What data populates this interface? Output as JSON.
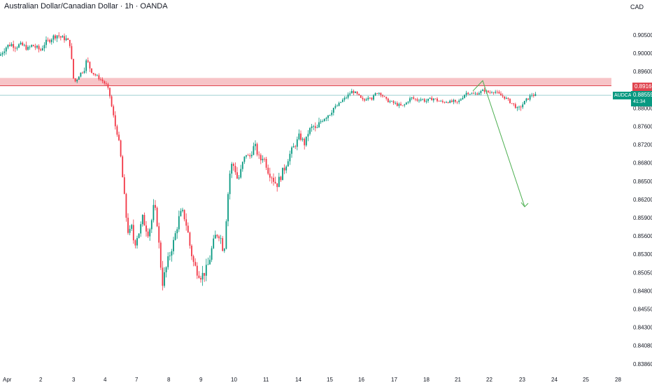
{
  "header": {
    "title": "Australian Dollar/Canadian Dollar · 1h · OANDA",
    "currency": "CAD"
  },
  "colors": {
    "up": "#089981",
    "down": "#f23645",
    "zone_fill": "#f7c4c7",
    "zone_line": "#e04650",
    "projection": "#4caf50",
    "last_price_line": "#9fcfd0",
    "last_price_bg": "#089981"
  },
  "labels": {
    "resistance": "0.89166",
    "symbol": "AUDCAD",
    "last_price": "0.88559",
    "countdown": "41:34"
  },
  "chart_data": {
    "type": "candlestick",
    "symbol": "AUDCAD",
    "timeframe": "1h",
    "source": "OANDA",
    "ylim": [
      0.8386,
      0.9074
    ],
    "y_ticks": [
      "0.90500",
      "0.90000",
      "0.89600",
      "0.88800",
      "0.88000",
      "0.87600",
      "0.87200",
      "0.86800",
      "0.86500",
      "0.86200",
      "0.85900",
      "0.85600",
      "0.85300",
      "0.85050",
      "0.84800",
      "0.84550",
      "0.84300",
      "0.84080",
      "0.83860"
    ],
    "x_ticks": [
      "Apr",
      "2",
      "3",
      "4",
      "7",
      "8",
      "9",
      "10",
      "11",
      "14",
      "15",
      "16",
      "17",
      "18",
      "21",
      "22",
      "23",
      "24",
      "25",
      "28"
    ],
    "resistance_zone": [
      0.8916,
      0.8932
    ],
    "resistance_level": 0.89166,
    "last_price": 0.88559,
    "price_path": [
      [
        0,
        0.8995
      ],
      [
        5,
        0.9008
      ],
      [
        10,
        0.902
      ],
      [
        16,
        0.9025
      ],
      [
        22,
        0.9018
      ],
      [
        28,
        0.9023
      ],
      [
        34,
        0.902
      ],
      [
        40,
        0.9012
      ],
      [
        46,
        0.9022
      ],
      [
        52,
        0.9015
      ],
      [
        58,
        0.9008
      ],
      [
        64,
        0.9028
      ],
      [
        70,
        0.9035
      ],
      [
        76,
        0.9045
      ],
      [
        82,
        0.905
      ],
      [
        88,
        0.9042
      ],
      [
        94,
        0.904
      ],
      [
        100,
        0.9025
      ],
      [
        102,
        0.8995
      ],
      [
        104,
        0.8935
      ],
      [
        108,
        0.8915
      ],
      [
        114,
        0.895
      ],
      [
        120,
        0.8965
      ],
      [
        124,
        0.8985
      ],
      [
        128,
        0.897
      ],
      [
        134,
        0.895
      ],
      [
        140,
        0.8935
      ],
      [
        146,
        0.892
      ],
      [
        152,
        0.89
      ],
      [
        156,
        0.887
      ],
      [
        160,
        0.88
      ],
      [
        164,
        0.8765
      ],
      [
        168,
        0.8745
      ],
      [
        172,
        0.87
      ],
      [
        176,
        0.8645
      ],
      [
        180,
        0.8595
      ],
      [
        184,
        0.856
      ],
      [
        188,
        0.8575
      ],
      [
        192,
        0.8545
      ],
      [
        196,
        0.856
      ],
      [
        200,
        0.857
      ],
      [
        204,
        0.859
      ],
      [
        208,
        0.8575
      ],
      [
        212,
        0.8565
      ],
      [
        216,
        0.858
      ],
      [
        220,
        0.861
      ],
      [
        224,
        0.859
      ],
      [
        228,
        0.8535
      ],
      [
        232,
        0.849
      ],
      [
        236,
        0.8505
      ],
      [
        240,
        0.852
      ],
      [
        244,
        0.8535
      ],
      [
        248,
        0.855
      ],
      [
        252,
        0.857
      ],
      [
        256,
        0.859
      ],
      [
        260,
        0.86
      ],
      [
        264,
        0.859
      ],
      [
        268,
        0.857
      ],
      [
        272,
        0.854
      ],
      [
        276,
        0.852
      ],
      [
        280,
        0.851
      ],
      [
        284,
        0.8505
      ],
      [
        288,
        0.85
      ],
      [
        292,
        0.8505
      ],
      [
        296,
        0.851
      ],
      [
        300,
        0.8525
      ],
      [
        304,
        0.8545
      ],
      [
        308,
        0.856
      ],
      [
        312,
        0.8565
      ],
      [
        316,
        0.8555
      ],
      [
        320,
        0.853
      ],
      [
        324,
        0.86
      ],
      [
        328,
        0.866
      ],
      [
        332,
        0.868
      ],
      [
        336,
        0.867
      ],
      [
        340,
        0.865
      ],
      [
        344,
        0.8665
      ],
      [
        348,
        0.8685
      ],
      [
        352,
        0.87
      ],
      [
        356,
        0.869
      ],
      [
        360,
        0.8705
      ],
      [
        364,
        0.872
      ],
      [
        368,
        0.87
      ],
      [
        372,
        0.8685
      ],
      [
        376,
        0.8695
      ],
      [
        380,
        0.868
      ],
      [
        384,
        0.8665
      ],
      [
        388,
        0.866
      ],
      [
        392,
        0.865
      ],
      [
        396,
        0.8645
      ],
      [
        400,
        0.8655
      ],
      [
        404,
        0.8665
      ],
      [
        408,
        0.8675
      ],
      [
        412,
        0.869
      ],
      [
        416,
        0.8705
      ],
      [
        420,
        0.8715
      ],
      [
        424,
        0.8725
      ],
      [
        428,
        0.874
      ],
      [
        432,
        0.873
      ],
      [
        436,
        0.872
      ],
      [
        440,
        0.8745
      ],
      [
        444,
        0.8755
      ],
      [
        448,
        0.876
      ],
      [
        452,
        0.875
      ],
      [
        456,
        0.8765
      ],
      [
        460,
        0.8775
      ],
      [
        464,
        0.878
      ],
      [
        468,
        0.8785
      ],
      [
        472,
        0.879
      ],
      [
        476,
        0.88
      ],
      [
        480,
        0.8805
      ],
      [
        484,
        0.8815
      ],
      [
        488,
        0.883
      ],
      [
        492,
        0.884
      ],
      [
        496,
        0.885
      ],
      [
        500,
        0.8865
      ],
      [
        504,
        0.8875
      ],
      [
        508,
        0.8865
      ],
      [
        512,
        0.8855
      ],
      [
        516,
        0.884
      ],
      [
        520,
        0.883
      ],
      [
        524,
        0.8845
      ],
      [
        528,
        0.8855
      ],
      [
        532,
        0.884
      ],
      [
        536,
        0.886
      ],
      [
        540,
        0.887
      ],
      [
        544,
        0.8865
      ],
      [
        548,
        0.885
      ],
      [
        552,
        0.8835
      ],
      [
        556,
        0.883
      ],
      [
        560,
        0.8825
      ],
      [
        564,
        0.882
      ],
      [
        568,
        0.8815
      ],
      [
        572,
        0.881
      ],
      [
        576,
        0.8808
      ],
      [
        580,
        0.882
      ],
      [
        584,
        0.8835
      ],
      [
        588,
        0.8845
      ],
      [
        592,
        0.884
      ],
      [
        596,
        0.8835
      ],
      [
        600,
        0.884
      ],
      [
        604,
        0.8838
      ],
      [
        608,
        0.883
      ],
      [
        612,
        0.8835
      ],
      [
        616,
        0.884
      ],
      [
        620,
        0.8842
      ],
      [
        624,
        0.8835
      ],
      [
        628,
        0.883
      ],
      [
        632,
        0.8825
      ],
      [
        636,
        0.8828
      ],
      [
        640,
        0.883
      ],
      [
        644,
        0.8825
      ],
      [
        648,
        0.883
      ],
      [
        652,
        0.882
      ],
      [
        656,
        0.883
      ],
      [
        660,
        0.8845
      ],
      [
        664,
        0.886
      ],
      [
        668,
        0.887
      ],
      [
        672,
        0.8865
      ],
      [
        676,
        0.886
      ],
      [
        680,
        0.8862
      ],
      [
        684,
        0.8868
      ],
      [
        688,
        0.8872
      ],
      [
        692,
        0.8878
      ],
      [
        696,
        0.887
      ],
      [
        700,
        0.8868
      ],
      [
        704,
        0.8875
      ],
      [
        708,
        0.8872
      ],
      [
        712,
        0.8862
      ],
      [
        716,
        0.8855
      ],
      [
        720,
        0.885
      ],
      [
        724,
        0.884
      ],
      [
        728,
        0.883
      ],
      [
        732,
        0.882
      ],
      [
        736,
        0.881
      ],
      [
        740,
        0.8795
      ],
      [
        744,
        0.8805
      ],
      [
        748,
        0.882
      ],
      [
        752,
        0.8835
      ],
      [
        756,
        0.8845
      ],
      [
        760,
        0.886
      ],
      [
        764,
        0.8855
      ],
      [
        768,
        0.8856
      ]
    ],
    "projection": [
      [
        690,
        0.892
      ],
      [
        750,
        0.8608
      ]
    ]
  }
}
